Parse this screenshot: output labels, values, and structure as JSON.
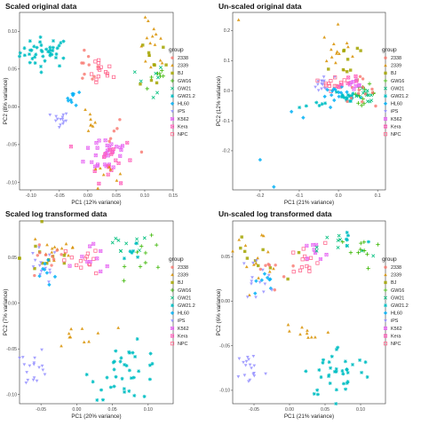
{
  "legend_title": "group",
  "groups": [
    {
      "name": "2338",
      "color": "#F8766D",
      "shape": "circle"
    },
    {
      "name": "2339",
      "color": "#D89000",
      "shape": "triangle"
    },
    {
      "name": "BJ",
      "color": "#A3A500",
      "shape": "square"
    },
    {
      "name": "GW16",
      "color": "#39B600",
      "shape": "plus"
    },
    {
      "name": "GW21",
      "color": "#00BF7D",
      "shape": "cross"
    },
    {
      "name": "GW21.2",
      "color": "#00BFC4",
      "shape": "asterisk"
    },
    {
      "name": "HL60",
      "color": "#00B0F6",
      "shape": "diamond"
    },
    {
      "name": "iPS",
      "color": "#9590FF",
      "shape": "triangle-down"
    },
    {
      "name": "K562",
      "color": "#E76BF3",
      "shape": "x-square"
    },
    {
      "name": "Kera",
      "color": "#FF62BC",
      "shape": "x-square"
    },
    {
      "name": "NPC",
      "color": "#FF6C91",
      "shape": "square-open"
    }
  ],
  "chart_data": [
    {
      "type": "scatter",
      "title": "Scaled original data",
      "xlabel": "PC1 (12% variance)",
      "ylabel": "PC2 (8% variance)",
      "xlim": [
        -0.12,
        0.15
      ],
      "ylim": [
        -0.11,
        0.125
      ],
      "xticks": [
        -0.1,
        -0.05,
        0.0,
        0.05,
        0.1,
        0.15
      ],
      "xtick_labels": [
        "-0.10",
        "-0.05",
        "0.00",
        "0.05",
        "0.10",
        "0.15"
      ],
      "yticks": [
        -0.1,
        -0.05,
        0.0,
        0.05,
        0.1
      ],
      "ytick_labels": [
        "-0.10",
        "-0.05",
        "0.00",
        "0.05",
        "0.10"
      ],
      "legend": "right",
      "grid": false,
      "clusters": [
        {
          "group": "GW21.2",
          "cx": -0.075,
          "cy": 0.072,
          "sx": 0.022,
          "sy": 0.01,
          "n": 42
        },
        {
          "group": "HL60",
          "cx": -0.025,
          "cy": 0.012,
          "sx": 0.006,
          "sy": 0.005,
          "n": 9
        },
        {
          "group": "iPS",
          "cx": -0.05,
          "cy": -0.018,
          "sx": 0.008,
          "sy": 0.006,
          "n": 14
        },
        {
          "group": "2338",
          "cx": 0.0,
          "cy": 0.05,
          "sx": 0.01,
          "sy": 0.01,
          "n": 10
        },
        {
          "group": "NPC",
          "cx": 0.02,
          "cy": 0.045,
          "sx": 0.012,
          "sy": 0.01,
          "n": 15
        },
        {
          "group": "2339",
          "cx": 0.115,
          "cy": 0.075,
          "sx": 0.012,
          "sy": 0.02,
          "n": 15
        },
        {
          "group": "BJ",
          "cx": 0.115,
          "cy": 0.06,
          "sx": 0.012,
          "sy": 0.02,
          "n": 10
        },
        {
          "group": "GW16",
          "cx": 0.12,
          "cy": 0.045,
          "sx": 0.01,
          "sy": 0.015,
          "n": 7
        },
        {
          "group": "GW21",
          "cx": 0.11,
          "cy": 0.03,
          "sx": 0.012,
          "sy": 0.015,
          "n": 7
        },
        {
          "group": "2339",
          "cx": 0.0,
          "cy": -0.015,
          "sx": 0.012,
          "sy": 0.01,
          "n": 8
        },
        {
          "group": "K562",
          "cx": 0.035,
          "cy": -0.06,
          "sx": 0.02,
          "sy": 0.015,
          "n": 30
        },
        {
          "group": "Kera",
          "cx": 0.04,
          "cy": -0.07,
          "sx": 0.02,
          "sy": 0.015,
          "n": 18
        },
        {
          "group": "2339",
          "cx": 0.03,
          "cy": -0.085,
          "sx": 0.012,
          "sy": 0.01,
          "n": 8
        },
        {
          "group": "2338",
          "cx": 0.04,
          "cy": -0.04,
          "sx": 0.02,
          "sy": 0.01,
          "n": 6
        }
      ]
    },
    {
      "type": "scatter",
      "title": "Un-scaled original data",
      "xlabel": "PC1 (21% variance)",
      "ylabel": "PC2 (12% variance)",
      "xlim": [
        -0.27,
        0.12
      ],
      "ylim": [
        -0.33,
        0.26
      ],
      "xticks": [
        -0.2,
        -0.1,
        0.0,
        0.1
      ],
      "xtick_labels": [
        "-0.2",
        "-0.1",
        "0.0",
        "0.1"
      ],
      "yticks": [
        -0.2,
        -0.1,
        0.0,
        0.1,
        0.2
      ],
      "ytick_labels": [
        "-0.2",
        "-0.1",
        "0.0",
        "0.1",
        "0.2"
      ],
      "legend": "right",
      "grid": false,
      "clusters": [
        {
          "group": "2339",
          "cx": 0.0,
          "cy": 0.13,
          "sx": 0.02,
          "sy": 0.04,
          "n": 14
        },
        {
          "group": "BJ",
          "cx": 0.015,
          "cy": 0.1,
          "sx": 0.02,
          "sy": 0.04,
          "n": 10
        },
        {
          "group": "iPS",
          "cx": -0.04,
          "cy": 0.02,
          "sx": 0.015,
          "sy": 0.015,
          "n": 16
        },
        {
          "group": "NPC",
          "cx": -0.01,
          "cy": 0.03,
          "sx": 0.015,
          "sy": 0.015,
          "n": 14
        },
        {
          "group": "HL60",
          "cx": -0.005,
          "cy": -0.015,
          "sx": 0.015,
          "sy": 0.012,
          "n": 14
        },
        {
          "group": "GW21.2",
          "cx": 0.03,
          "cy": -0.02,
          "sx": 0.02,
          "sy": 0.012,
          "n": 16
        },
        {
          "group": "GW16",
          "cx": 0.065,
          "cy": -0.01,
          "sx": 0.015,
          "sy": 0.015,
          "n": 12
        },
        {
          "group": "GW21",
          "cx": 0.07,
          "cy": -0.015,
          "sx": 0.015,
          "sy": 0.012,
          "n": 12
        },
        {
          "group": "2338",
          "cx": 0.05,
          "cy": 0.0,
          "sx": 0.02,
          "sy": 0.02,
          "n": 14
        },
        {
          "group": "K562",
          "cx": 0.04,
          "cy": 0.005,
          "sx": 0.02,
          "sy": 0.015,
          "n": 8
        },
        {
          "group": "Kera",
          "cx": 0.03,
          "cy": 0.035,
          "sx": 0.015,
          "sy": 0.012,
          "n": 6
        },
        {
          "group": "GW21.2",
          "cx": -0.06,
          "cy": -0.05,
          "sx": 0.025,
          "sy": 0.01,
          "n": 6
        }
      ],
      "points": [
        {
          "group": "2339",
          "x": -0.255,
          "y": 0.235
        },
        {
          "group": "HL60",
          "x": -0.2,
          "y": -0.23
        },
        {
          "group": "HL60",
          "x": -0.165,
          "y": -0.32
        },
        {
          "group": "HL60",
          "x": -0.09,
          "y": -0.09
        },
        {
          "group": "HL60",
          "x": -0.12,
          "y": -0.07
        }
      ]
    },
    {
      "type": "scatter",
      "title": "Scaled log transformed data",
      "xlabel": "PC1 (20% variance)",
      "ylabel": "PC2 (7% variance)",
      "xlim": [
        -0.08,
        0.135
      ],
      "ylim": [
        -0.11,
        0.09
      ],
      "xticks": [
        -0.05,
        0.0,
        0.05,
        0.1
      ],
      "xtick_labels": [
        "-0.05",
        "0.00",
        "0.05",
        "0.10"
      ],
      "yticks": [
        -0.1,
        -0.05,
        0.0,
        0.05
      ],
      "ytick_labels": [
        "-0.10",
        "-0.05",
        "0.00",
        "0.05"
      ],
      "legend": "right",
      "grid": false,
      "clusters": [
        {
          "group": "2339",
          "cx": -0.03,
          "cy": 0.06,
          "sx": 0.02,
          "sy": 0.012,
          "n": 16
        },
        {
          "group": "BJ",
          "cx": -0.04,
          "cy": 0.05,
          "sx": 0.02,
          "sy": 0.012,
          "n": 12
        },
        {
          "group": "HL60",
          "cx": -0.04,
          "cy": 0.035,
          "sx": 0.01,
          "sy": 0.01,
          "n": 8
        },
        {
          "group": "iPS",
          "cx": -0.05,
          "cy": 0.04,
          "sx": 0.012,
          "sy": 0.01,
          "n": 14
        },
        {
          "group": "2338",
          "cx": -0.045,
          "cy": 0.045,
          "sx": 0.015,
          "sy": 0.01,
          "n": 10
        },
        {
          "group": "NPC",
          "cx": 0.005,
          "cy": 0.045,
          "sx": 0.015,
          "sy": 0.008,
          "n": 14
        },
        {
          "group": "K562",
          "cx": 0.03,
          "cy": 0.048,
          "sx": 0.015,
          "sy": 0.008,
          "n": 10
        },
        {
          "group": "GW21",
          "cx": 0.065,
          "cy": 0.06,
          "sx": 0.02,
          "sy": 0.008,
          "n": 10
        },
        {
          "group": "GW16",
          "cx": 0.1,
          "cy": 0.05,
          "sx": 0.015,
          "sy": 0.01,
          "n": 10
        },
        {
          "group": "GW21.2",
          "cx": 0.08,
          "cy": 0.055,
          "sx": 0.015,
          "sy": 0.008,
          "n": 6
        },
        {
          "group": "2339",
          "cx": 0.01,
          "cy": -0.035,
          "sx": 0.02,
          "sy": 0.012,
          "n": 10
        },
        {
          "group": "iPS",
          "cx": -0.06,
          "cy": -0.07,
          "sx": 0.01,
          "sy": 0.01,
          "n": 18
        },
        {
          "group": "GW21.2",
          "cx": 0.07,
          "cy": -0.075,
          "sx": 0.025,
          "sy": 0.015,
          "n": 36
        }
      ]
    },
    {
      "type": "scatter",
      "title": "Un-scaled log transformed data",
      "xlabel": "PC1 (21% variance)",
      "ylabel": "PC2 (6% variance)",
      "xlim": [
        -0.08,
        0.135
      ],
      "ylim": [
        -0.115,
        0.09
      ],
      "xticks": [
        -0.05,
        0.0,
        0.05,
        0.1
      ],
      "xtick_labels": [
        "-0.05",
        "0.00",
        "0.05",
        "0.10"
      ],
      "yticks": [
        -0.1,
        -0.05,
        0.0,
        0.05
      ],
      "ytick_labels": [
        "-0.10",
        "-0.05",
        "0.00",
        "0.05"
      ],
      "legend": "right",
      "grid": false,
      "clusters": [
        {
          "group": "2339",
          "cx": -0.045,
          "cy": 0.055,
          "sx": 0.02,
          "sy": 0.012,
          "n": 14
        },
        {
          "group": "BJ",
          "cx": -0.05,
          "cy": 0.045,
          "sx": 0.02,
          "sy": 0.012,
          "n": 10
        },
        {
          "group": "HL60",
          "cx": -0.04,
          "cy": 0.02,
          "sx": 0.01,
          "sy": 0.01,
          "n": 8
        },
        {
          "group": "iPS",
          "cx": -0.045,
          "cy": 0.025,
          "sx": 0.012,
          "sy": 0.012,
          "n": 14
        },
        {
          "group": "2338",
          "cx": -0.03,
          "cy": 0.035,
          "sx": 0.015,
          "sy": 0.01,
          "n": 8
        },
        {
          "group": "NPC",
          "cx": 0.02,
          "cy": 0.045,
          "sx": 0.015,
          "sy": 0.01,
          "n": 14
        },
        {
          "group": "K562",
          "cx": 0.03,
          "cy": 0.05,
          "sx": 0.015,
          "sy": 0.008,
          "n": 8
        },
        {
          "group": "GW21",
          "cx": 0.08,
          "cy": 0.06,
          "sx": 0.02,
          "sy": 0.01,
          "n": 10
        },
        {
          "group": "GW16",
          "cx": 0.1,
          "cy": 0.055,
          "sx": 0.015,
          "sy": 0.01,
          "n": 10
        },
        {
          "group": "GW21.2",
          "cx": 0.085,
          "cy": 0.07,
          "sx": 0.015,
          "sy": 0.008,
          "n": 6
        },
        {
          "group": "2339",
          "cx": 0.02,
          "cy": -0.035,
          "sx": 0.02,
          "sy": 0.01,
          "n": 10
        },
        {
          "group": "iPS",
          "cx": -0.055,
          "cy": -0.075,
          "sx": 0.01,
          "sy": 0.01,
          "n": 18
        },
        {
          "group": "GW21.2",
          "cx": 0.07,
          "cy": -0.08,
          "sx": 0.025,
          "sy": 0.015,
          "n": 36
        }
      ]
    }
  ]
}
